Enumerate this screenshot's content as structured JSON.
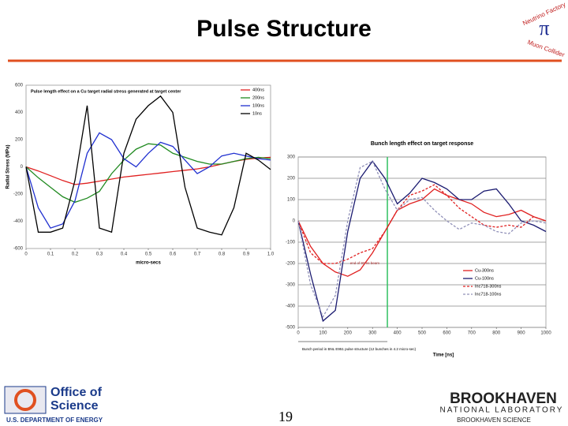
{
  "title": "Pulse Structure",
  "page_number": "19",
  "logo_top": [
    "Neutrino Factory",
    "Muon Collider"
  ],
  "footer": {
    "office": [
      "Office of",
      "Science"
    ],
    "doe": "U.S. DEPARTMENT OF ENERGY",
    "bnl": "BROOKHAVEN",
    "bnl_sub": "NATIONAL LABORATORY",
    "bnl_tag": "BROOKHAVEN SCIENCE"
  },
  "chart_data": [
    {
      "type": "line",
      "title": "Pulse length effect on a Cu target radial stress generated at target center",
      "x_label": "micro-secs",
      "y_label": "Radial Stress (MPa)",
      "x": [
        0,
        0.05,
        0.1,
        0.15,
        0.2,
        0.25,
        0.3,
        0.35,
        0.4,
        0.45,
        0.5,
        0.55,
        0.6,
        0.65,
        0.7,
        0.75,
        0.8,
        0.85,
        0.9,
        0.95,
        1.0
      ],
      "xlim": [
        0,
        1
      ],
      "xticks": [
        0,
        0.1,
        0.2,
        0.3,
        0.4,
        0.5,
        0.6,
        0.7,
        0.8,
        0.9,
        {
          "value": 1,
          "label": "1.0"
        }
      ],
      "ylim": [
        -600,
        600
      ],
      "yticks": [
        -600,
        -400,
        -200,
        0,
        200,
        400,
        600
      ],
      "grid": false,
      "legend": "upper-right",
      "series": [
        {
          "name": "400ns",
          "color": "#e02020",
          "dash": false,
          "values": [
            0,
            -30,
            -65,
            -100,
            -130,
            -120,
            -105,
            -90,
            -75,
            -65,
            -55,
            -45,
            -35,
            -25,
            -15,
            0,
            20,
            40,
            55,
            65,
            70
          ]
        },
        {
          "name": "200ns",
          "color": "#208a20",
          "dash": false,
          "values": [
            0,
            -80,
            -150,
            -220,
            -260,
            -230,
            -180,
            -50,
            50,
            130,
            170,
            160,
            100,
            70,
            40,
            20,
            20,
            40,
            60,
            70,
            60
          ]
        },
        {
          "name": "100ns",
          "color": "#2030d0",
          "dash": false,
          "values": [
            0,
            -300,
            -450,
            -420,
            -250,
            100,
            250,
            200,
            60,
            0,
            100,
            180,
            150,
            50,
            -50,
            0,
            80,
            100,
            80,
            60,
            50
          ]
        },
        {
          "name": "10ns",
          "color": "#000000",
          "dash": false,
          "values": [
            0,
            -480,
            -480,
            -450,
            -100,
            450,
            -450,
            -480,
            100,
            350,
            450,
            520,
            400,
            -150,
            -450,
            -480,
            -500,
            -300,
            100,
            50,
            -20
          ]
        }
      ]
    },
    {
      "type": "line",
      "title": "Bunch length effect on target response",
      "x_label": "Time [ns]",
      "annotations": [
        "end of 90 ns beam",
        "Bunch period in BNL E951 pulse structure (12 bunches in 4.2 micro-sec)"
      ],
      "marker_x": 360,
      "marker_color": "#30c060",
      "x": [
        0,
        50,
        100,
        150,
        200,
        250,
        300,
        350,
        400,
        450,
        500,
        550,
        600,
        650,
        700,
        750,
        800,
        850,
        900,
        950,
        1000
      ],
      "xlim": [
        0,
        1000
      ],
      "xticks": [
        0,
        100,
        200,
        300,
        400,
        500,
        600,
        700,
        800,
        900,
        1000
      ],
      "ylim": [
        -500,
        300
      ],
      "yticks": [
        -500,
        -400,
        -300,
        -200,
        -100,
        0,
        100,
        200,
        300
      ],
      "grid": true,
      "legend": "lower-right",
      "series": [
        {
          "name": "Cu-300ns",
          "color": "#e02020",
          "dash": false,
          "values": [
            0,
            -120,
            -200,
            -240,
            -260,
            -230,
            -150,
            -50,
            50,
            80,
            100,
            150,
            120,
            100,
            80,
            40,
            20,
            30,
            50,
            20,
            0
          ]
        },
        {
          "name": "Cu-100ns",
          "color": "#1a1a70",
          "dash": false,
          "values": [
            0,
            -250,
            -470,
            -420,
            -50,
            200,
            280,
            200,
            80,
            130,
            200,
            180,
            150,
            100,
            100,
            140,
            150,
            80,
            0,
            -20,
            -50
          ]
        },
        {
          "name": "Inc718-300ns",
          "color": "#e02020",
          "dash": true,
          "values": [
            0,
            -150,
            -200,
            -200,
            -180,
            -150,
            -130,
            -50,
            50,
            120,
            140,
            170,
            120,
            60,
            20,
            -20,
            -30,
            -20,
            -30,
            20,
            0
          ]
        },
        {
          "name": "Inc718-100ns",
          "color": "#9090b8",
          "dash": true,
          "values": [
            0,
            -300,
            -450,
            -350,
            0,
            250,
            280,
            150,
            50,
            100,
            110,
            50,
            0,
            -40,
            -10,
            -20,
            -50,
            -60,
            -10,
            0,
            -10
          ]
        }
      ]
    }
  ]
}
